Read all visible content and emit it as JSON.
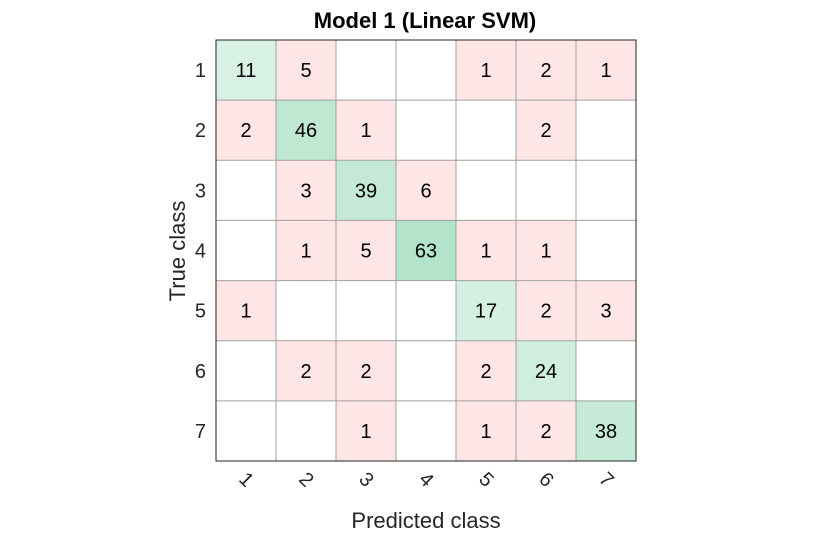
{
  "chart_data": {
    "type": "heatmap",
    "title": "Model 1 (Linear SVM)",
    "xlabel": "Predicted class",
    "ylabel": "True class",
    "row_labels": [
      "1",
      "2",
      "3",
      "4",
      "5",
      "6",
      "7"
    ],
    "col_labels": [
      "1",
      "2",
      "3",
      "4",
      "5",
      "6",
      "7"
    ],
    "matrix": [
      [
        11,
        5,
        0,
        0,
        1,
        2,
        1
      ],
      [
        2,
        46,
        1,
        0,
        0,
        2,
        0
      ],
      [
        0,
        3,
        39,
        6,
        0,
        0,
        0
      ],
      [
        0,
        1,
        5,
        63,
        1,
        1,
        0
      ],
      [
        1,
        0,
        0,
        0,
        17,
        2,
        3
      ],
      [
        0,
        2,
        2,
        0,
        2,
        24,
        0
      ],
      [
        0,
        0,
        1,
        0,
        1,
        2,
        38
      ]
    ],
    "colors": {
      "diagonal": "#00a550",
      "off_diagonal": "#ff8080",
      "empty": "#ffffff",
      "grid": "#a0a0a0",
      "frame": "#262626"
    }
  }
}
